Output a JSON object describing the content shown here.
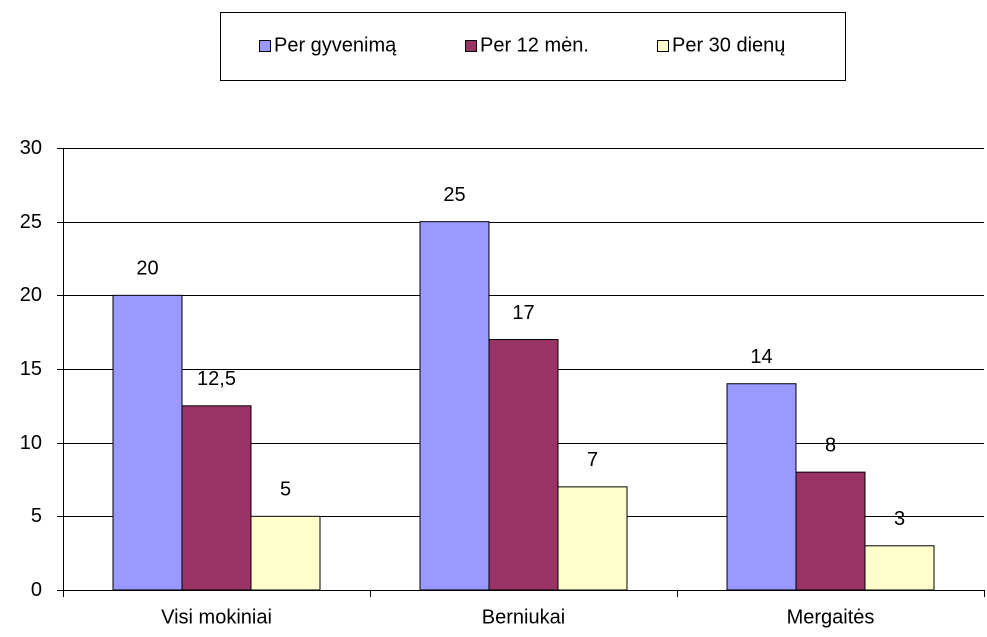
{
  "chart_data": {
    "type": "bar",
    "categories": [
      "Visi mokiniai",
      "Berniukai",
      "Mergaitės"
    ],
    "series": [
      {
        "name": "Per gyvenimą",
        "color": "#9999ff",
        "values": [
          20,
          25,
          14
        ],
        "value_labels": [
          "20",
          "25",
          "14"
        ]
      },
      {
        "name": "Per 12 mėn.",
        "color": "#993366",
        "values": [
          12.5,
          17,
          8
        ],
        "value_labels": [
          "12,5",
          "17",
          "8"
        ]
      },
      {
        "name": "Per 30 dienų",
        "color": "#ffffcc",
        "values": [
          5,
          7,
          3
        ],
        "value_labels": [
          "5",
          "7",
          "3"
        ]
      }
    ],
    "ylim": [
      0,
      30
    ],
    "yticks": [
      0,
      5,
      10,
      15,
      20,
      25,
      30
    ],
    "grid": true,
    "legend": "top"
  }
}
